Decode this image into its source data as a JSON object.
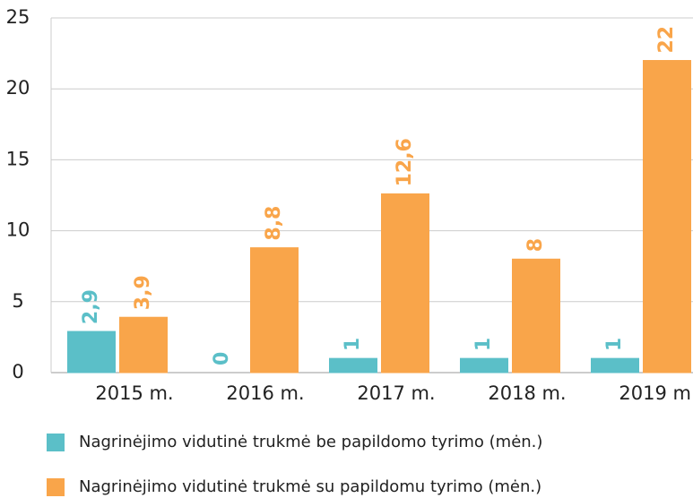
{
  "chart_data": {
    "type": "bar",
    "categories": [
      "2015 m.",
      "2016 m.",
      "2017 m.",
      "2018 m.",
      "2019 m."
    ],
    "series": [
      {
        "name": "Nagrinėjimo vidutinė trukmė be papildomo tyrimo (mėn.)",
        "color": "#5bbfc8",
        "values": [
          2.9,
          0,
          1,
          1,
          1
        ],
        "value_labels": [
          "2,9",
          "0",
          "1",
          "1",
          "1"
        ]
      },
      {
        "name": "Nagrinėjimo vidutinė trukmė su papildomu tyrimo (mėn.)",
        "color": "#f9a54a",
        "values": [
          3.9,
          8.8,
          12.6,
          8,
          22
        ],
        "value_labels": [
          "3,9",
          "8,8",
          "12,6",
          "8",
          "22"
        ]
      }
    ],
    "ylim": [
      0,
      25
    ],
    "yticks": [
      0,
      5,
      10,
      15,
      20,
      25
    ],
    "grid": true
  }
}
